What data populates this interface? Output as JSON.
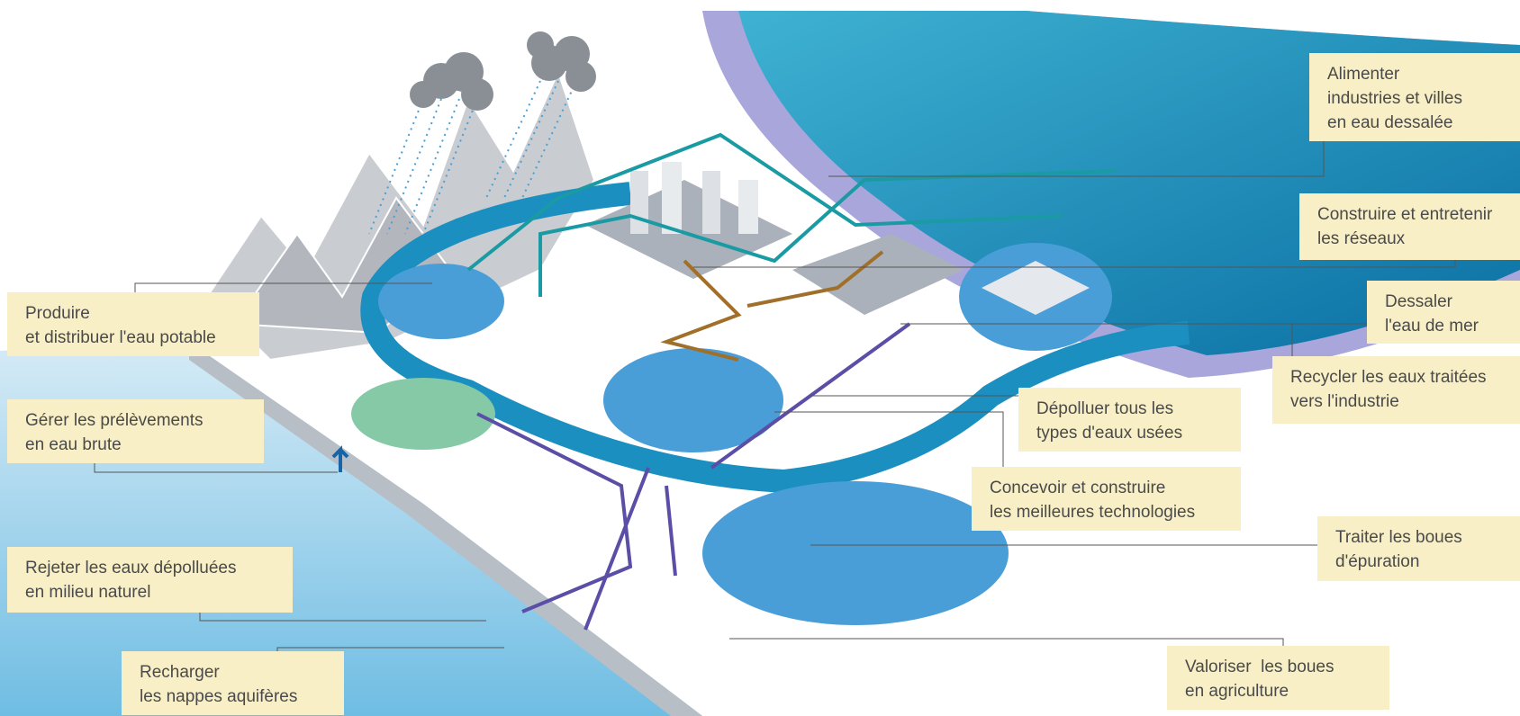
{
  "labels": [
    {
      "lines": [
        "Alimenter",
        "industries et villes",
        "en eau dessalée"
      ]
    },
    {
      "lines": [
        "Construire et entretenir",
        "les réseaux"
      ]
    },
    {
      "lines": [
        "Dessaler",
        "l'eau de mer"
      ]
    },
    {
      "lines": [
        "Recycler les eaux traitées",
        "vers l'industrie"
      ]
    },
    {
      "lines": [
        "Produire",
        "et distribuer l'eau potable"
      ]
    },
    {
      "lines": [
        "Gérer les prélèvements",
        "en eau brute"
      ]
    },
    {
      "lines": [
        "Dépolluer tous les",
        "types d'eaux usées"
      ]
    },
    {
      "lines": [
        "Concevoir et construire",
        "les meilleures technologies"
      ]
    },
    {
      "lines": [
        "Traiter les boues",
        "d'épuration"
      ]
    },
    {
      "lines": [
        "Rejeter les eaux dépolluées",
        "en milieu naturel"
      ]
    },
    {
      "lines": [
        "Recharger",
        "les nappes aquifères"
      ]
    },
    {
      "lines": [
        "Valoriser  les boues",
        "en agriculture"
      ]
    }
  ]
}
